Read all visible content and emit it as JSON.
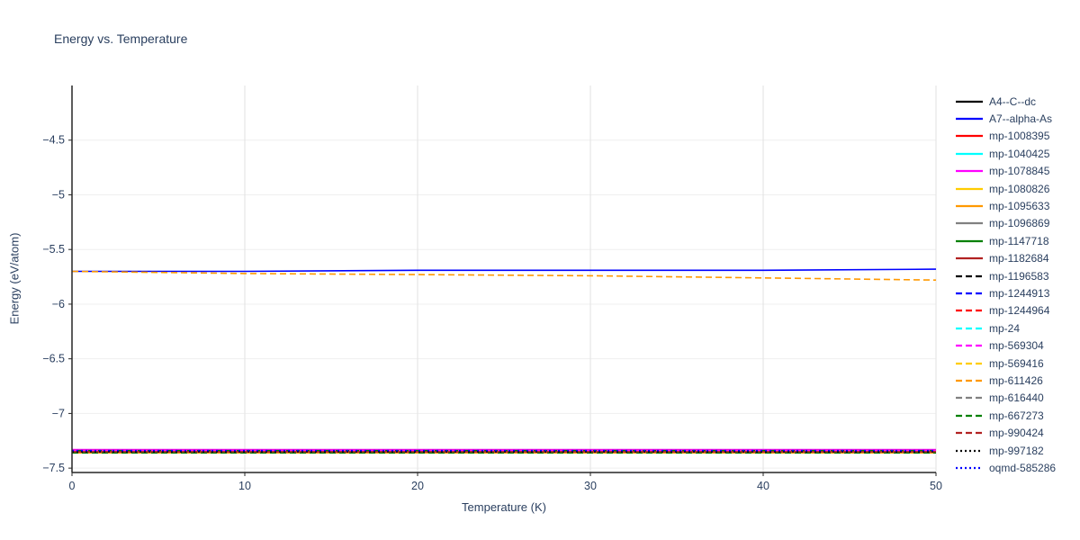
{
  "chart_data": {
    "type": "line",
    "title": "Energy vs. Temperature",
    "xlabel": "Temperature (K)",
    "ylabel": "Energy (eV/atom)",
    "xlim": [
      0,
      50
    ],
    "ylim": [
      -7.54,
      -4.0
    ],
    "xticks": [
      0,
      10,
      20,
      30,
      40,
      50
    ],
    "xtick_labels": [
      "0",
      "10",
      "20",
      "30",
      "40",
      "50"
    ],
    "yticks": [
      -4.5,
      -5,
      -5.5,
      -6,
      -6.5,
      -7,
      -7.5
    ],
    "ytick_labels": [
      "−4.5",
      "−5",
      "−5.5",
      "−6",
      "−6.5",
      "−7",
      "−7.5"
    ],
    "grid": true,
    "legend_position": "right",
    "x": [
      0,
      10,
      20,
      30,
      40,
      50
    ],
    "series": [
      {
        "name": "A4--C--dc",
        "color": "#000000",
        "style": "solid",
        "values": [
          -7.35,
          -7.35,
          -7.35,
          -7.35,
          -7.35,
          -7.35
        ]
      },
      {
        "name": "A7--alpha-As",
        "color": "#0000ff",
        "style": "solid",
        "values": [
          -5.7,
          -5.7,
          -5.69,
          -5.69,
          -5.69,
          -5.68
        ]
      },
      {
        "name": "mp-1008395",
        "color": "#ff0000",
        "style": "solid",
        "values": [
          -7.36,
          -7.36,
          -7.36,
          -7.36,
          -7.36,
          -7.36
        ]
      },
      {
        "name": "mp-1040425",
        "color": "#00ffff",
        "style": "solid",
        "values": [
          -7.35,
          -7.35,
          -7.35,
          -7.35,
          -7.35,
          -7.35
        ]
      },
      {
        "name": "mp-1078845",
        "color": "#ff00ff",
        "style": "solid",
        "values": [
          -7.33,
          -7.33,
          -7.33,
          -7.33,
          -7.33,
          -7.33
        ]
      },
      {
        "name": "mp-1080826",
        "color": "#ffcc00",
        "style": "solid",
        "values": [
          -7.35,
          -7.35,
          -7.35,
          -7.35,
          -7.35,
          -7.35
        ]
      },
      {
        "name": "mp-1095633",
        "color": "#ff9900",
        "style": "solid",
        "values": [
          -7.36,
          -7.36,
          -7.36,
          -7.36,
          -7.36,
          -7.36
        ]
      },
      {
        "name": "mp-1096869",
        "color": "#808080",
        "style": "solid",
        "values": [
          -7.35,
          -7.35,
          -7.35,
          -7.35,
          -7.35,
          -7.35
        ]
      },
      {
        "name": "mp-1147718",
        "color": "#008000",
        "style": "solid",
        "values": [
          -7.34,
          -7.34,
          -7.34,
          -7.34,
          -7.34,
          -7.34
        ]
      },
      {
        "name": "mp-1182684",
        "color": "#b22222",
        "style": "solid",
        "values": [
          -7.35,
          -7.35,
          -7.35,
          -7.35,
          -7.35,
          -7.35
        ]
      },
      {
        "name": "mp-1196583",
        "color": "#000000",
        "style": "dashed",
        "values": [
          -7.36,
          -7.36,
          -7.36,
          -7.36,
          -7.36,
          -7.36
        ]
      },
      {
        "name": "mp-1244913",
        "color": "#0000ff",
        "style": "dashed",
        "values": [
          -7.35,
          -7.35,
          -7.35,
          -7.35,
          -7.35,
          -7.35
        ]
      },
      {
        "name": "mp-1244964",
        "color": "#ff0000",
        "style": "dashed",
        "values": [
          -7.34,
          -7.34,
          -7.34,
          -7.34,
          -7.34,
          -7.34
        ]
      },
      {
        "name": "mp-24",
        "color": "#00ffff",
        "style": "dashed",
        "values": [
          -7.35,
          -7.35,
          -7.35,
          -7.35,
          -7.35,
          -7.35
        ]
      },
      {
        "name": "mp-569304",
        "color": "#ff00ff",
        "style": "dashed",
        "values": [
          -7.34,
          -7.34,
          -7.34,
          -7.34,
          -7.34,
          -7.34
        ]
      },
      {
        "name": "mp-569416",
        "color": "#ffcc00",
        "style": "dashed",
        "values": [
          -7.35,
          -7.35,
          -7.35,
          -7.35,
          -7.35,
          -7.35
        ]
      },
      {
        "name": "mp-611426",
        "color": "#ff9900",
        "style": "dashed",
        "values": [
          -5.7,
          -5.72,
          -5.73,
          -5.74,
          -5.76,
          -5.78
        ]
      },
      {
        "name": "mp-616440",
        "color": "#808080",
        "style": "dashed",
        "values": [
          -7.35,
          -7.35,
          -7.35,
          -7.35,
          -7.35,
          -7.35
        ]
      },
      {
        "name": "mp-667273",
        "color": "#008000",
        "style": "dashed",
        "values": [
          -7.36,
          -7.36,
          -7.36,
          -7.36,
          -7.36,
          -7.36
        ]
      },
      {
        "name": "mp-990424",
        "color": "#b22222",
        "style": "dashed",
        "values": [
          -7.35,
          -7.35,
          -7.35,
          -7.35,
          -7.35,
          -7.35
        ]
      },
      {
        "name": "mp-997182",
        "color": "#000000",
        "style": "dotted",
        "values": [
          -7.35,
          -7.35,
          -7.35,
          -7.35,
          -7.35,
          -7.35
        ]
      },
      {
        "name": "oqmd-585286",
        "color": "#0000ff",
        "style": "dotted",
        "values": [
          -7.34,
          -7.34,
          -7.34,
          -7.34,
          -7.34,
          -7.34
        ]
      }
    ],
    "colors": {
      "text": "#2a3f5f",
      "axis": "#262626",
      "grid_vertical": "#e2e2e2",
      "grid_horizontal": "#efefef"
    }
  }
}
